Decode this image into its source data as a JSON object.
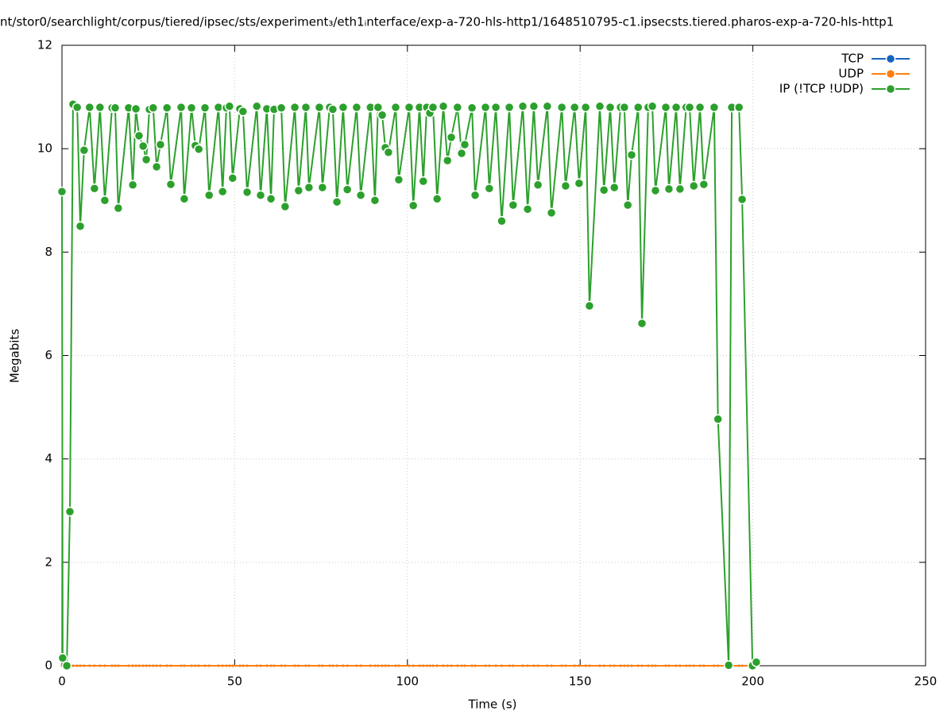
{
  "chart_data": {
    "type": "line",
    "title": "nt/stor0/searchlight/corpus/tiered/ipsec/sts/experiment₃/eth1ᵢnterface/exp-a-720-hls-http1/1648510795-c1.ipsecsts.tiered.pharos-exp-a-720-hls-http1",
    "x_label": "Time (s)",
    "y_label": "Megabits",
    "xlim": [
      0,
      250
    ],
    "xticks": [
      0,
      50,
      100,
      150,
      200,
      250
    ],
    "ylim": [
      0,
      12
    ],
    "yticks": [
      0,
      2,
      4,
      6,
      8,
      10,
      12
    ],
    "grid": true,
    "legend": "top-right",
    "x": [
      0,
      0.2,
      1.4,
      2.3,
      3.2,
      4.4,
      5.3,
      6.4,
      8,
      9.4,
      11,
      12.4,
      14.5,
      15.4,
      16.3,
      19.3,
      20.5,
      21.4,
      22.3,
      23.5,
      24.4,
      25.3,
      26.4,
      27.4,
      28.5,
      30.4,
      31.5,
      34.5,
      35.4,
      37.5,
      38.6,
      39.6,
      41.4,
      42.6,
      45.3,
      46.5,
      47.6,
      48.5,
      49.4,
      51.5,
      52.4,
      53.6,
      56.4,
      57.5,
      59.3,
      60.5,
      61.4,
      63.5,
      64.6,
      67.4,
      68.5,
      70.6,
      71.5,
      74.5,
      75.4,
      77.5,
      78.4,
      79.6,
      81.4,
      82.6,
      85.3,
      86.5,
      89.3,
      90.6,
      91.5,
      92.7,
      93.6,
      94.5,
      96.6,
      97.5,
      100.5,
      101.7,
      103.5,
      104.6,
      105.6,
      106.5,
      107.4,
      108.6,
      110.4,
      111.6,
      112.7,
      114.5,
      115.7,
      116.6,
      118.7,
      119.6,
      122.6,
      123.7,
      125.6,
      127.3,
      129.5,
      130.6,
      133.4,
      134.8,
      136.6,
      137.8,
      140.5,
      141.7,
      144.7,
      145.8,
      148.4,
      149.7,
      151.6,
      152.7,
      155.7,
      156.9,
      158.7,
      159.9,
      161.7,
      162.8,
      163.8,
      164.9,
      166.8,
      167.9,
      169.7,
      170.9,
      171.8,
      174.8,
      175.7,
      177.8,
      178.9,
      180.7,
      181.7,
      182.9,
      184.7,
      185.8,
      188.8,
      189.9,
      193,
      193.9,
      196,
      196.9,
      199.9,
      201
    ],
    "series": [
      {
        "name": "TCP",
        "color": "#1565c0",
        "values": [
          0,
          0,
          0,
          0,
          0,
          0,
          0,
          0,
          0,
          0,
          0,
          0,
          0,
          0,
          0,
          0,
          0,
          0,
          0,
          0,
          0,
          0,
          0,
          0,
          0,
          0,
          0,
          0,
          0,
          0,
          0,
          0,
          0,
          0,
          0,
          0,
          0,
          0,
          0,
          0,
          0,
          0,
          0,
          0,
          0,
          0,
          0,
          0,
          0,
          0,
          0,
          0,
          0,
          0,
          0,
          0,
          0,
          0,
          0,
          0,
          0,
          0,
          0,
          0,
          0,
          0,
          0,
          0,
          0,
          0,
          0,
          0,
          0,
          0,
          0,
          0,
          0,
          0,
          0,
          0,
          0,
          0,
          0,
          0,
          0,
          0,
          0,
          0,
          0,
          0,
          0,
          0,
          0,
          0,
          0,
          0,
          0,
          0,
          0,
          0,
          0,
          0,
          0,
          0,
          0,
          0,
          0,
          0,
          0,
          0,
          0,
          0,
          0,
          0,
          0,
          0,
          0,
          0,
          0,
          0,
          0,
          0,
          0,
          0,
          0,
          0,
          0,
          0,
          0,
          0,
          0,
          0,
          0,
          0
        ]
      },
      {
        "name": "UDP",
        "color": "#ff7f0e",
        "values": [
          0,
          0,
          0,
          0,
          0,
          0,
          0,
          0,
          0,
          0,
          0,
          0,
          0,
          0,
          0,
          0,
          0,
          0,
          0,
          0,
          0,
          0,
          0,
          0,
          0,
          0,
          0,
          0,
          0,
          0,
          0,
          0,
          0,
          0,
          0,
          0,
          0,
          0,
          0,
          0,
          0,
          0,
          0,
          0,
          0,
          0,
          0,
          0,
          0,
          0,
          0,
          0,
          0,
          0,
          0,
          0,
          0,
          0,
          0,
          0,
          0,
          0,
          0,
          0,
          0,
          0,
          0,
          0,
          0,
          0,
          0,
          0,
          0,
          0,
          0,
          0,
          0,
          0,
          0,
          0,
          0,
          0,
          0,
          0,
          0,
          0,
          0,
          0,
          0,
          0,
          0,
          0,
          0,
          0,
          0,
          0,
          0,
          0,
          0,
          0,
          0,
          0,
          0,
          0,
          0,
          0,
          0,
          0,
          0,
          0,
          0,
          0,
          0,
          0,
          0,
          0,
          0,
          0,
          0,
          0,
          0,
          0,
          0,
          0,
          0,
          0,
          0,
          0,
          0,
          0,
          0,
          0,
          0,
          0
        ]
      },
      {
        "name": "IP (!TCP  !UDP)",
        "color": "#2ca02c",
        "values": [
          9.17,
          0.15,
          0,
          2.98,
          10.86,
          10.8,
          8.5,
          9.97,
          10.8,
          9.23,
          10.8,
          9.0,
          10.79,
          10.79,
          8.85,
          10.79,
          9.3,
          10.77,
          10.25,
          10.05,
          9.79,
          10.76,
          10.79,
          9.65,
          10.08,
          10.79,
          9.31,
          10.8,
          9.03,
          10.79,
          10.06,
          9.99,
          10.79,
          9.1,
          10.8,
          9.17,
          10.79,
          10.82,
          9.43,
          10.77,
          10.72,
          9.16,
          10.82,
          9.1,
          10.77,
          9.03,
          10.76,
          10.79,
          8.88,
          10.8,
          9.19,
          10.8,
          9.25,
          10.8,
          9.25,
          10.8,
          10.76,
          8.97,
          10.8,
          9.21,
          10.8,
          9.1,
          10.8,
          9.0,
          10.8,
          10.65,
          10.02,
          9.93,
          10.8,
          9.4,
          10.8,
          8.9,
          10.8,
          9.37,
          10.8,
          10.69,
          10.8,
          9.03,
          10.82,
          9.77,
          10.22,
          10.8,
          9.91,
          10.08,
          10.79,
          9.1,
          10.8,
          9.23,
          10.8,
          8.6,
          10.8,
          8.91,
          10.82,
          8.83,
          10.82,
          9.3,
          10.82,
          8.76,
          10.8,
          9.28,
          10.8,
          9.33,
          10.8,
          6.96,
          10.82,
          9.2,
          10.8,
          9.25,
          10.8,
          10.8,
          8.91,
          9.88,
          10.8,
          6.62,
          10.8,
          10.82,
          9.19,
          10.8,
          9.22,
          10.8,
          9.22,
          10.8,
          10.8,
          9.28,
          10.8,
          9.31,
          10.8,
          4.77,
          0.01,
          10.8,
          10.8,
          9.02,
          0,
          0.07
        ]
      }
    ]
  }
}
